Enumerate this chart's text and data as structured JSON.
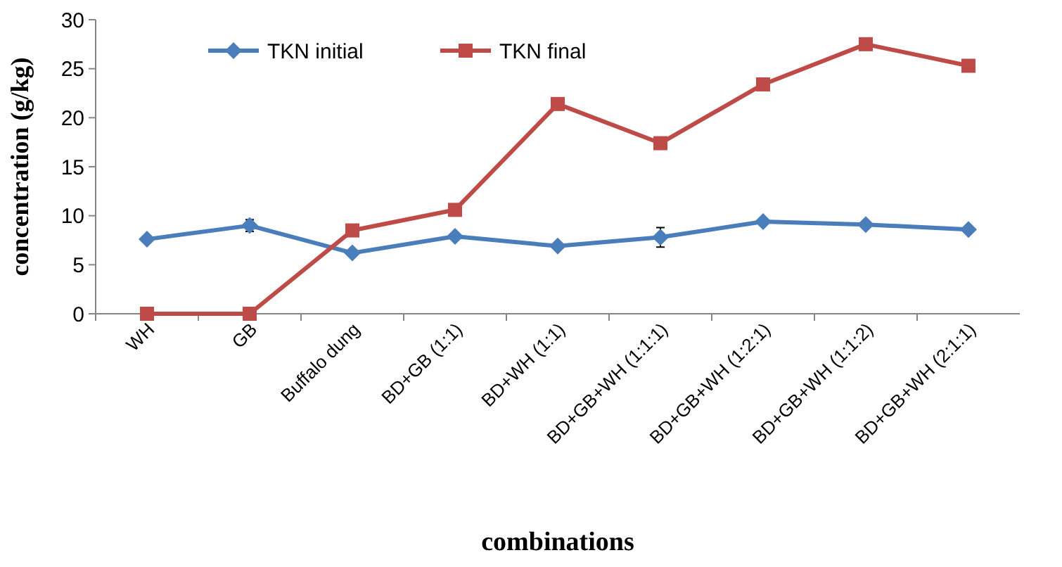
{
  "chart_data": {
    "type": "line",
    "xlabel": "combinations",
    "ylabel": "concentration (g/kg)",
    "categories": [
      "WH",
      "GB",
      "Buffalo dung",
      "BD+GB (1:1)",
      "BD+WH (1:1)",
      "BD+GB+WH (1:1:1)",
      "BD+GB+WH (1:2:1)",
      "BD+GB+WH (1:1:2)",
      "BD+GB+WH (2:1:1)"
    ],
    "ylim": [
      0,
      30
    ],
    "yticks": [
      0,
      5,
      10,
      15,
      20,
      25,
      30
    ],
    "grid": false,
    "legend": "top left",
    "series": [
      {
        "name": "TKN initial",
        "color": "#4a7ebb",
        "marker": "diamond",
        "values": [
          7.6,
          9.0,
          6.2,
          7.9,
          6.9,
          7.8,
          9.4,
          9.1,
          8.6
        ],
        "errors": [
          null,
          0.6,
          null,
          null,
          null,
          1.0,
          null,
          null,
          null
        ]
      },
      {
        "name": "TKN final",
        "color": "#be4b48",
        "marker": "square",
        "values": [
          0,
          0,
          8.5,
          10.6,
          21.4,
          17.4,
          23.4,
          27.5,
          25.3
        ]
      }
    ]
  }
}
